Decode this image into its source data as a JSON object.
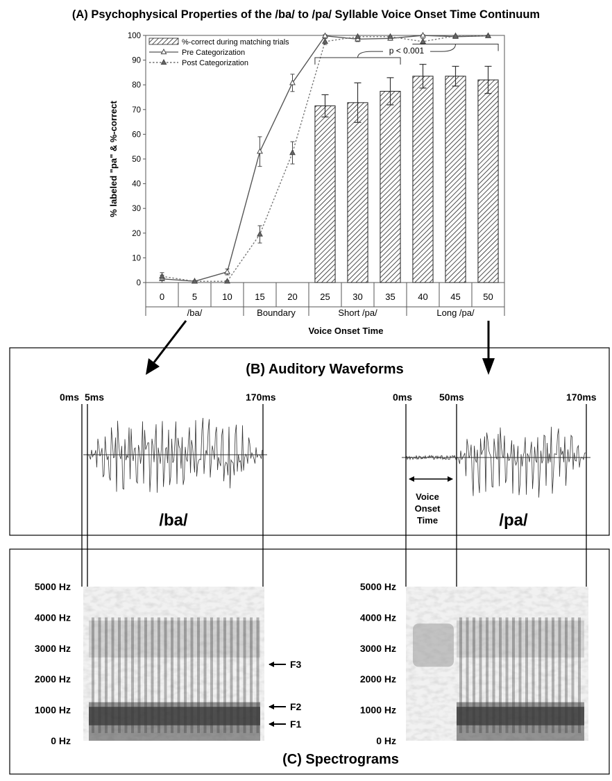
{
  "panel_a": {
    "title": "(A) Psychophysical Properties of the /ba/ to /pa/ Syllable Voice Onset Time Continuum"
  },
  "panel_b": {
    "title": "(B) Auditory Waveforms",
    "ba": {
      "label": "/ba/",
      "t0": "0ms",
      "t1": "5ms",
      "t2": "170ms"
    },
    "pa": {
      "label": "/pa/",
      "t0": "0ms",
      "t1": "50ms",
      "t2": "170ms",
      "vot_lines": [
        "Voice",
        "Onset",
        "Time"
      ]
    }
  },
  "panel_c": {
    "title": "(C) Spectrograms",
    "freq_labels": [
      "5000 Hz",
      "4000 Hz",
      "3000 Hz",
      "2000 Hz",
      "1000 Hz",
      "0 Hz"
    ],
    "formants": [
      "F3",
      "F2",
      "F1"
    ]
  },
  "chart_data": {
    "type": "bar",
    "title": "(A) Psychophysical Properties of the /ba/ to /pa/ Syllable Voice Onset Time Continuum",
    "xlabel": "Voice Onset Time",
    "ylabel": "% labeled \"pa\" & %-correct",
    "ylim": [
      0,
      100
    ],
    "yticks": [
      0,
      10,
      20,
      30,
      40,
      50,
      60,
      70,
      80,
      90,
      100
    ],
    "categories": [
      "0",
      "5",
      "10",
      "15",
      "20",
      "25",
      "30",
      "35",
      "40",
      "45",
      "50"
    ],
    "groups": [
      {
        "label": "/ba/",
        "from": 0,
        "to": 2
      },
      {
        "label": "Boundary",
        "from": 3,
        "to": 4
      },
      {
        "label": "Short /pa/",
        "from": 5,
        "to": 7
      },
      {
        "label": "Long /pa/",
        "from": 8,
        "to": 10
      }
    ],
    "series": [
      {
        "name": "%-correct during matching trials",
        "kind": "bar",
        "values": [
          null,
          null,
          null,
          null,
          null,
          71.5,
          72.8,
          77.4,
          83.5,
          83.5,
          82
        ],
        "errors": [
          null,
          null,
          null,
          null,
          null,
          4.5,
          8,
          5.5,
          4.8,
          4,
          5.5
        ]
      },
      {
        "name": "Pre Categorization",
        "kind": "line",
        "style": "solid",
        "marker": "open-triangle",
        "values": [
          1.5,
          0.5,
          4.3,
          53,
          80.8,
          99.8,
          98.5,
          98.8,
          100,
          99.5,
          99.8
        ],
        "errors": [
          1.5,
          0.3,
          1.2,
          6,
          3.5,
          0.5,
          1,
          0.8,
          0.3,
          0.3,
          0.3
        ]
      },
      {
        "name": "Post Categorization",
        "kind": "line",
        "style": "dotted",
        "marker": "filled-triangle",
        "values": [
          2.5,
          0.5,
          0.5,
          19.5,
          52.5,
          97.5,
          99.5,
          99.5,
          97.5,
          99.8,
          99.8
        ],
        "errors": [
          1.5,
          0.3,
          0.3,
          3.5,
          4.5,
          1.2,
          0.5,
          0.5,
          1.2,
          0.2,
          0.2
        ]
      }
    ],
    "annotation": {
      "text": "p < 0.001",
      "compares": [
        "Short /pa/",
        "Long /pa/"
      ]
    },
    "legend_position": "top-left",
    "grid": false
  }
}
